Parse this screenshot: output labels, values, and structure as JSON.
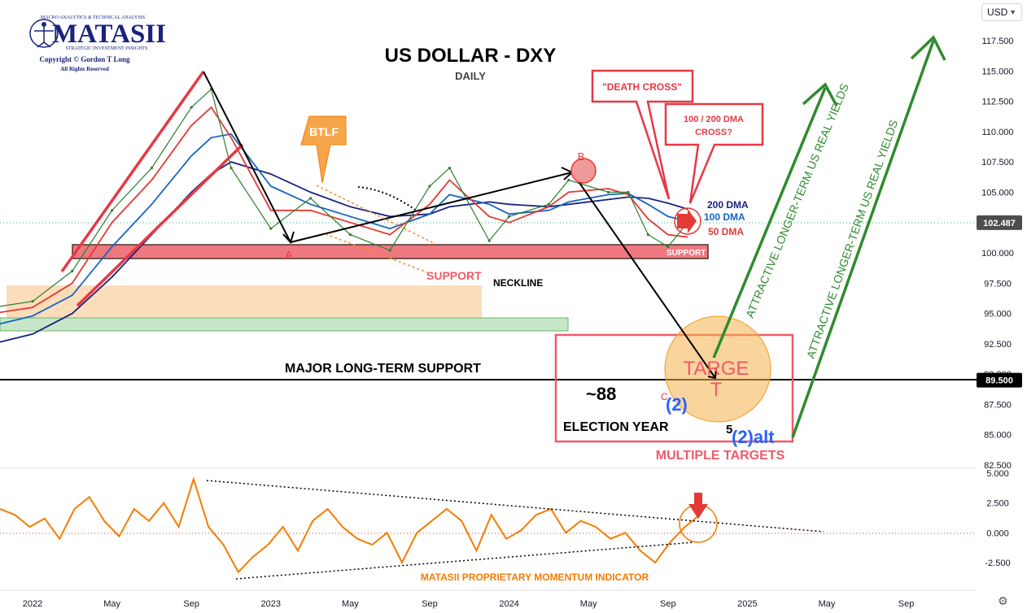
{
  "logo": {
    "name": "MATASII",
    "tagline": "MACRO ANALYTICS & TECHNICAL ANALYSIS",
    "sub": "STRATEGIC INVESTMENT INSIGHTS",
    "copyright": "Copyright © Gordon T Long",
    "rights": "All Rights Reserved"
  },
  "toolbar": {
    "currency": "USD",
    "settings_icon": "gear-icon"
  },
  "chart_data": [
    {
      "type": "line",
      "title": "US DOLLAR - DXY",
      "subtitle": "DAILY",
      "ylim": [
        82.5,
        117.5
      ],
      "y_ticks": [
        117.5,
        115.0,
        112.5,
        110.0,
        107.5,
        105.0,
        102.5,
        100.0,
        97.5,
        95.0,
        92.5,
        90.0,
        87.5,
        85.0,
        82.5
      ],
      "y_tick_labels": [
        "117.500",
        "115.000",
        "112.500",
        "110.000",
        "107.500",
        "105.000",
        "",
        "100.000",
        "97.500",
        "95.000",
        "92.500",
        "90.000",
        "87.500",
        "85.000",
        "82.500"
      ],
      "x_ticks": [
        "2022",
        "May",
        "Sep",
        "2023",
        "May",
        "Sep",
        "2024",
        "May",
        "Sep",
        "2025",
        "May",
        "Sep"
      ],
      "price_markers": [
        {
          "value": "102.487",
          "color": "#4d4d4d"
        },
        {
          "value": "89.500",
          "color": "#000000"
        }
      ],
      "series": [
        {
          "name": "DXY",
          "color": "#2e7d32",
          "x": [
            "2021-11",
            "2022-01",
            "2022-03",
            "2022-05",
            "2022-07",
            "2022-09",
            "2022-10",
            "2022-11",
            "2023-01",
            "2023-03",
            "2023-05",
            "2023-07",
            "2023-09",
            "2023-10",
            "2023-12",
            "2024-01",
            "2024-03",
            "2024-04",
            "2024-06",
            "2024-07",
            "2024-08",
            "2024-09",
            "2024-10"
          ],
          "values": [
            95.5,
            96.0,
            98.5,
            103.5,
            107.0,
            112.0,
            113.5,
            107.0,
            102.0,
            104.5,
            101.5,
            100.2,
            105.5,
            107.0,
            101.0,
            103.0,
            104.0,
            106.0,
            105.0,
            105.0,
            101.5,
            100.5,
            102.5
          ]
        },
        {
          "name": "50 DMA",
          "color": "#e53935",
          "values": [
            95.0,
            95.5,
            97.5,
            102.5,
            106.0,
            110.5,
            112.0,
            109.5,
            103.5,
            103.5,
            102.5,
            101.5,
            104.0,
            106.0,
            103.0,
            102.5,
            103.8,
            105.0,
            105.3,
            104.8,
            102.8,
            101.5,
            101.3
          ]
        },
        {
          "name": "100 DMA",
          "color": "#1565c0",
          "values": [
            94.0,
            94.8,
            96.5,
            100.5,
            104.0,
            108.0,
            109.5,
            109.8,
            105.5,
            104.0,
            103.0,
            102.0,
            103.2,
            104.8,
            104.0,
            103.2,
            103.5,
            104.2,
            104.8,
            104.9,
            104.0,
            103.0,
            102.6
          ]
        },
        {
          "name": "200 DMA",
          "color": "#1a237e",
          "values": [
            92.5,
            93.3,
            95.0,
            98.0,
            101.5,
            105.0,
            106.5,
            107.5,
            106.5,
            105.0,
            103.8,
            103.0,
            103.2,
            103.8,
            104.2,
            104.0,
            103.8,
            104.0,
            104.4,
            104.6,
            104.5,
            104.1,
            103.6
          ]
        }
      ],
      "labels": {
        "dma200": "200 DMA",
        "dma100": "100 DMA",
        "dma50": "50 DMA",
        "support_box": "SUPPORT",
        "support": "SUPPORT",
        "neckline": "NECKLINE",
        "major_support": "MAJOR LONG-TERM SUPPORT",
        "target_value": "~88",
        "election_year": "ELECTION YEAR",
        "target": "TARGE",
        "target_t": "T",
        "multiple_targets": "MULTIPLE TARGETS",
        "wave_2": "(2)",
        "wave_2alt": "(2)alt",
        "wave_5": "5",
        "wave_c": "C",
        "point_a": "A",
        "point_b": "B",
        "btlf": "BTLF",
        "death_cross": "\"DEATH CROSS\"",
        "dma_cross_line1": "100 / 200 DMA",
        "dma_cross_line2": "CROSS?",
        "yields_1": "ATTRACTIVE LONGER-TERM US REAL YIELDS",
        "yields_2": "ATTRACTIVE LONGER-TERM US REAL YIELDS"
      }
    },
    {
      "type": "line",
      "title": "MATASII PROPRIETARY MOMENTUM INDICATOR",
      "ylim": [
        -3.5,
        5.0
      ],
      "y_ticks": [
        5.0,
        2.5,
        0.0,
        -2.5
      ],
      "y_tick_labels": [
        "5.000",
        "2.500",
        "0.000",
        "-2.500"
      ],
      "series": [
        {
          "name": "Momentum",
          "color": "#f57c00",
          "values": [
            2.0,
            1.5,
            0.5,
            1.2,
            -0.5,
            2.0,
            3.0,
            1.0,
            -0.3,
            2.0,
            1.0,
            2.5,
            0.5,
            4.5,
            0.5,
            -1.0,
            -3.3,
            -2.0,
            -1.0,
            0.5,
            -1.5,
            1.0,
            2.0,
            0.5,
            -0.5,
            -1.0,
            0.0,
            -2.5,
            0.0,
            1.0,
            2.0,
            1.0,
            -1.5,
            1.5,
            -0.5,
            0.2,
            1.5,
            2.0,
            0.0,
            1.0,
            0.5,
            -0.5,
            0.0,
            -1.5,
            -2.5,
            -0.8,
            0.5,
            1.5
          ]
        }
      ]
    }
  ]
}
